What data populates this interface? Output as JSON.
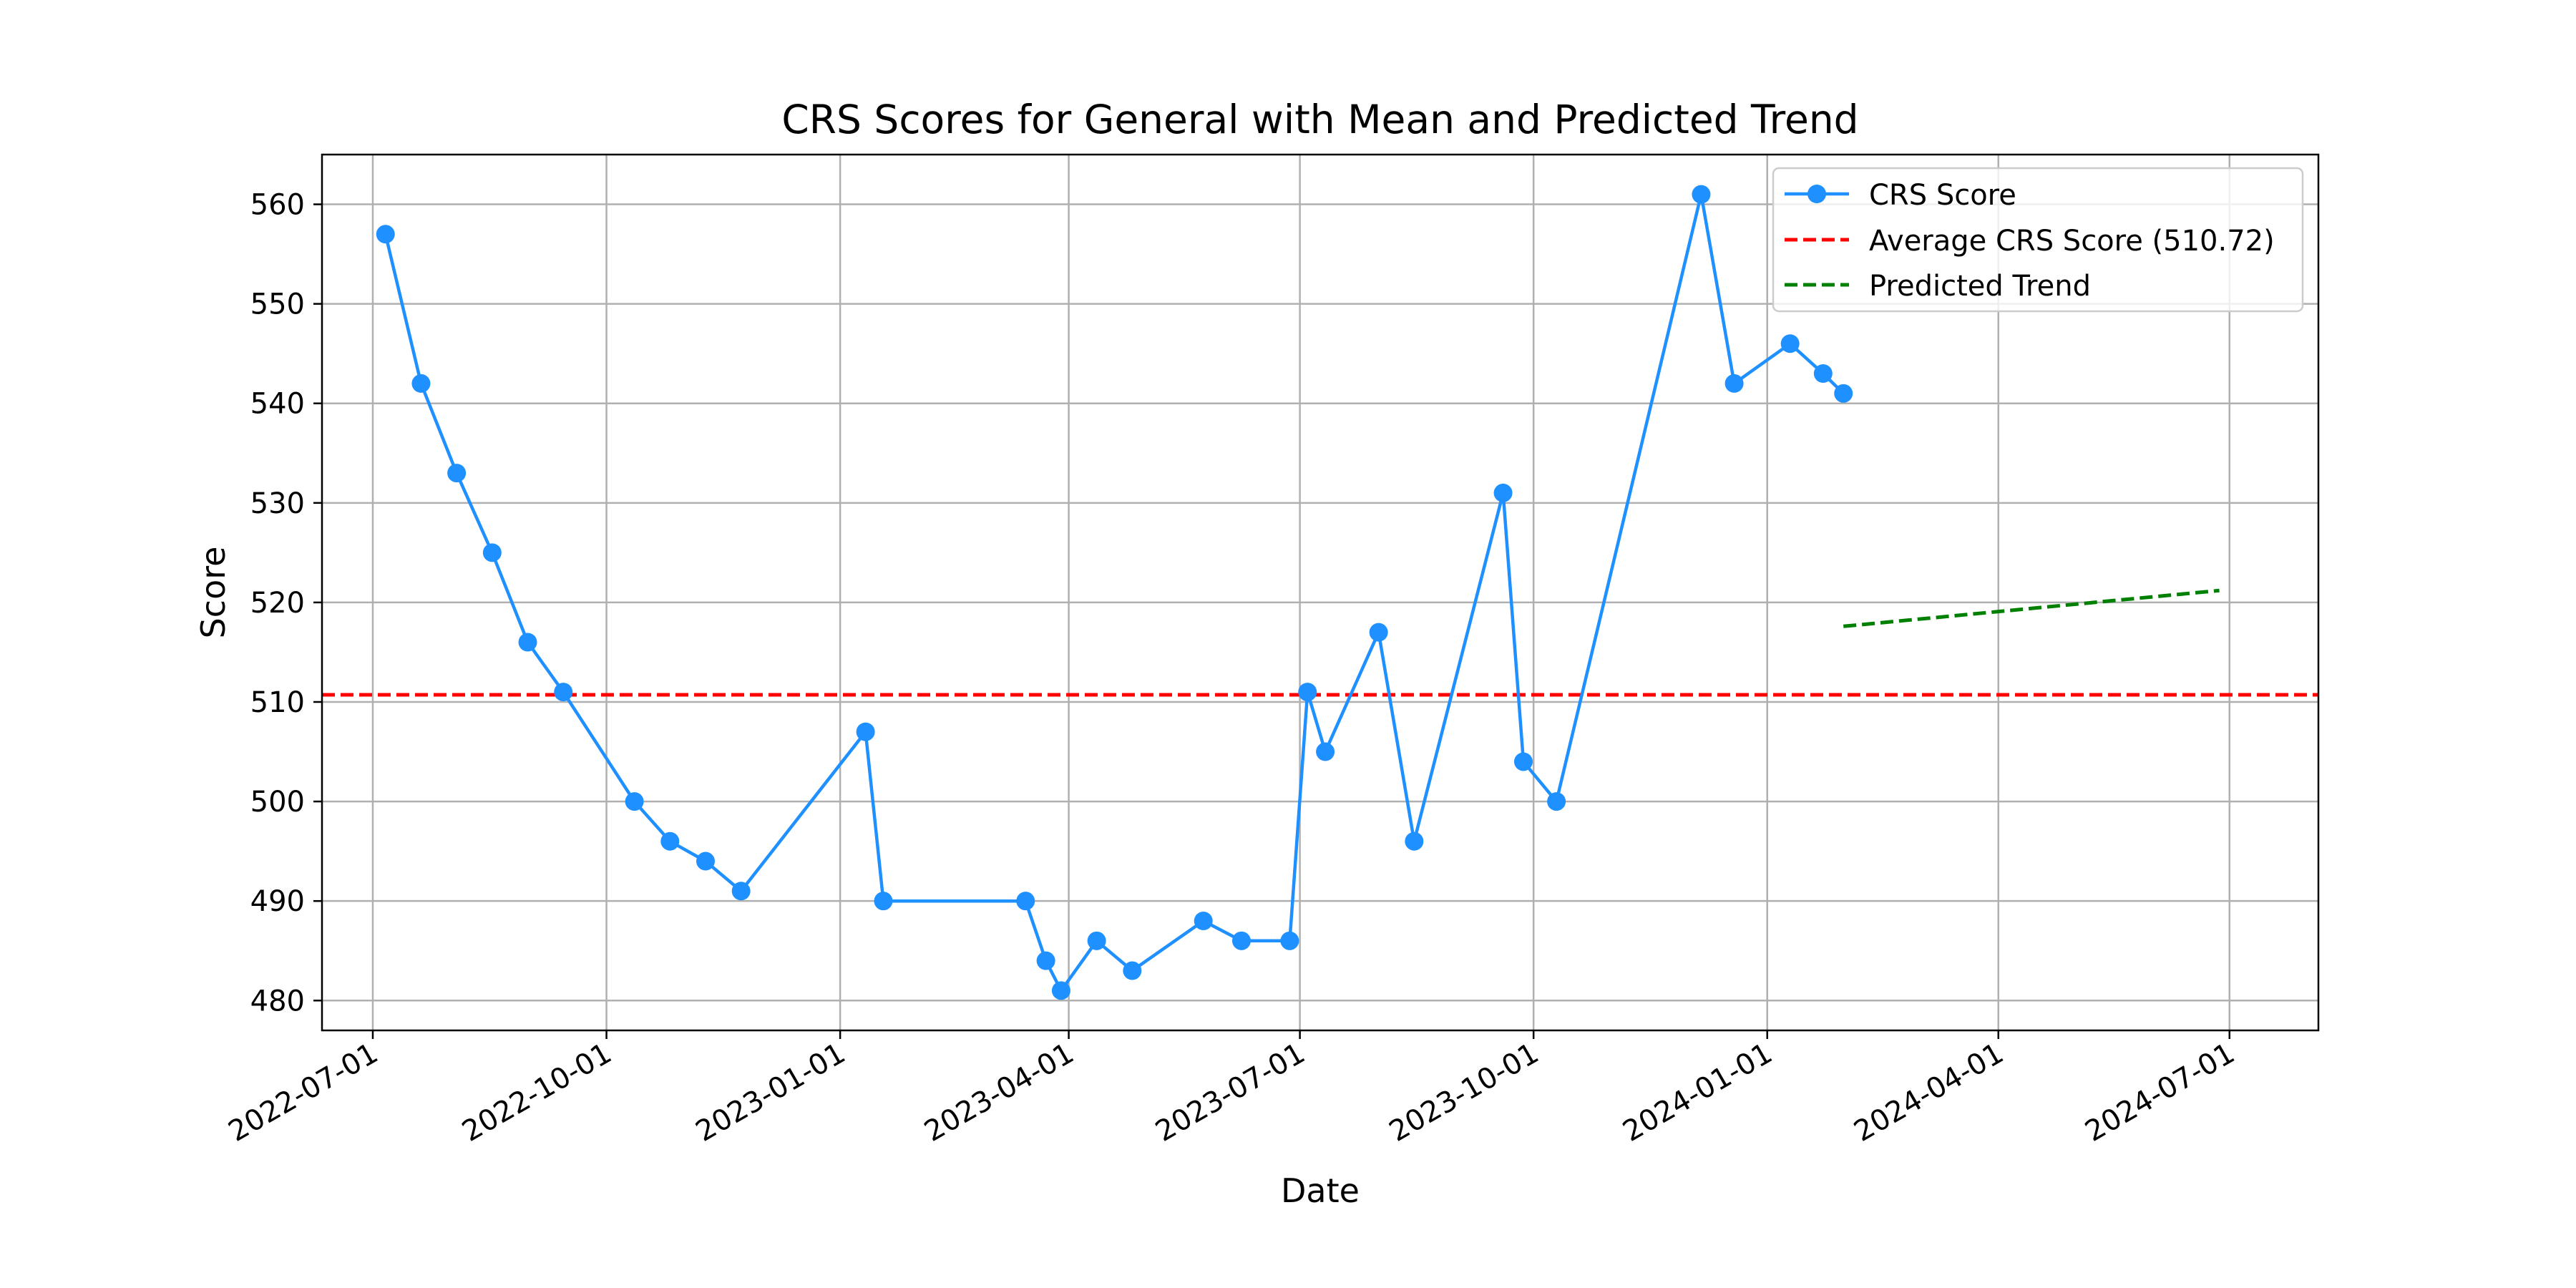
{
  "chart_data": {
    "type": "line",
    "title": "CRS Scores for General with Mean and Predicted Trend",
    "xlabel": "Date",
    "ylabel": "Score",
    "xlim": [
      "2022-06-11",
      "2024-08-05"
    ],
    "ylim": [
      477,
      565
    ],
    "grid": true,
    "legend_position": "top-right",
    "x_ticks": [
      "2022-07-01",
      "2022-10-01",
      "2023-01-01",
      "2023-04-01",
      "2023-07-01",
      "2023-10-01",
      "2024-01-01",
      "2024-04-01",
      "2024-07-01"
    ],
    "y_ticks": [
      480,
      490,
      500,
      510,
      520,
      530,
      540,
      550,
      560
    ],
    "series": [
      {
        "name": "CRS Score",
        "color": "#1e90ff",
        "style": "solid-with-markers",
        "points": [
          {
            "x": "2022-07-06",
            "y": 557
          },
          {
            "x": "2022-07-20",
            "y": 542
          },
          {
            "x": "2022-08-03",
            "y": 533
          },
          {
            "x": "2022-08-17",
            "y": 525
          },
          {
            "x": "2022-08-31",
            "y": 516
          },
          {
            "x": "2022-09-14",
            "y": 511
          },
          {
            "x": "2022-10-12",
            "y": 500
          },
          {
            "x": "2022-10-26",
            "y": 496
          },
          {
            "x": "2022-11-09",
            "y": 494
          },
          {
            "x": "2022-11-23",
            "y": 491
          },
          {
            "x": "2023-01-11",
            "y": 507
          },
          {
            "x": "2023-01-18",
            "y": 490
          },
          {
            "x": "2023-03-15",
            "y": 490
          },
          {
            "x": "2023-03-23",
            "y": 484
          },
          {
            "x": "2023-03-29",
            "y": 481
          },
          {
            "x": "2023-04-12",
            "y": 486
          },
          {
            "x": "2023-04-26",
            "y": 483
          },
          {
            "x": "2023-05-24",
            "y": 488
          },
          {
            "x": "2023-06-08",
            "y": 486
          },
          {
            "x": "2023-06-27",
            "y": 486
          },
          {
            "x": "2023-07-04",
            "y": 511
          },
          {
            "x": "2023-07-11",
            "y": 505
          },
          {
            "x": "2023-08-01",
            "y": 517
          },
          {
            "x": "2023-08-15",
            "y": 496
          },
          {
            "x": "2023-09-19",
            "y": 531
          },
          {
            "x": "2023-09-27",
            "y": 504
          },
          {
            "x": "2023-10-10",
            "y": 500
          },
          {
            "x": "2023-12-06",
            "y": 561
          },
          {
            "x": "2023-12-19",
            "y": 542
          },
          {
            "x": "2024-01-10",
            "y": 546
          },
          {
            "x": "2024-01-23",
            "y": 543
          },
          {
            "x": "2024-01-31",
            "y": 541
          }
        ]
      },
      {
        "name": "Average CRS Score (510.72)",
        "color": "#ff0000",
        "style": "dashed-horizontal",
        "value": 510.72
      },
      {
        "name": "Predicted Trend",
        "color": "#008000",
        "style": "dashed",
        "points": [
          {
            "x": "2024-01-31",
            "y": 517.6
          },
          {
            "x": "2024-06-27",
            "y": 521.2
          }
        ]
      }
    ]
  }
}
